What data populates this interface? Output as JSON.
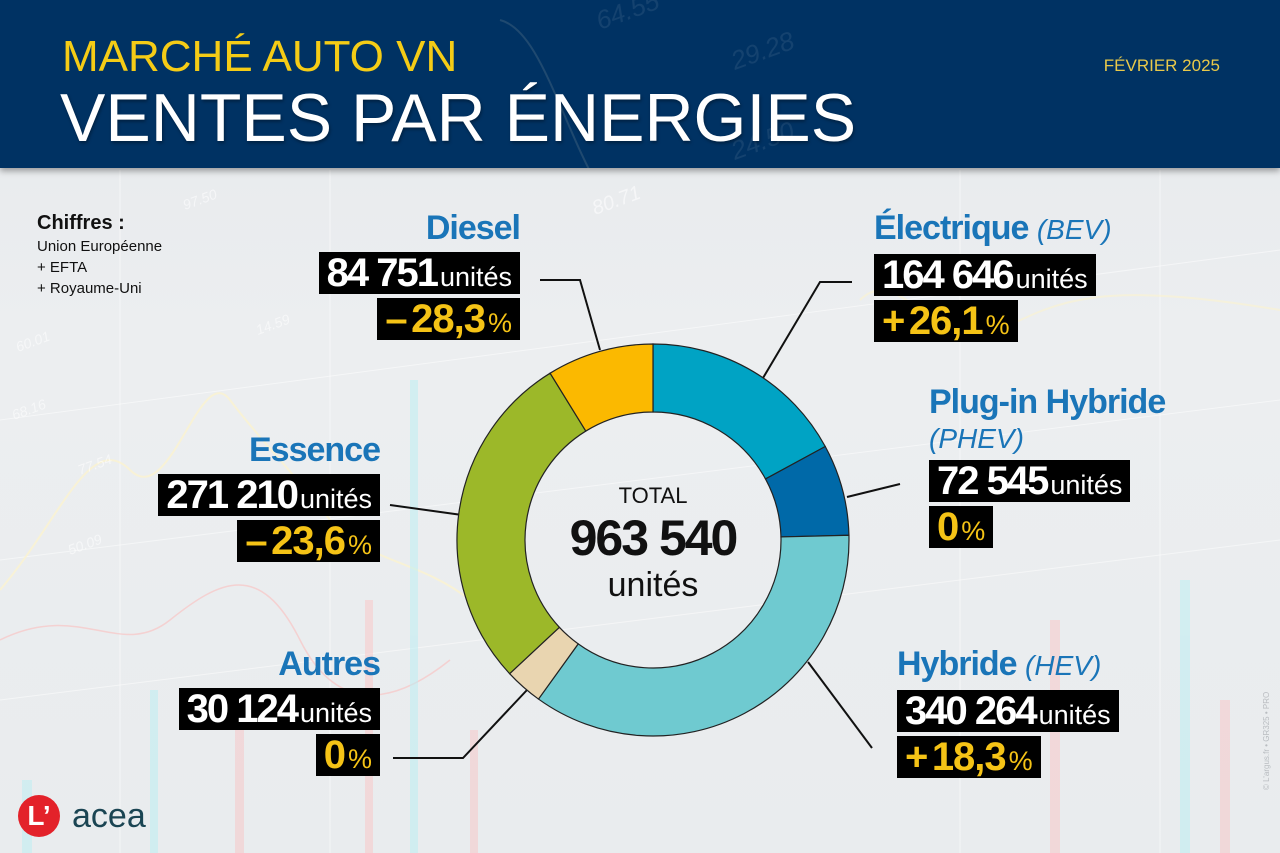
{
  "header": {
    "title_top": "MARCHÉ AUTO VN",
    "title_main": "VENTES PAR ÉNERGIES",
    "date": "FÉVRIER 2025",
    "background_color": "#003263",
    "accent_color": "#f5cc16"
  },
  "source": {
    "title": "Chiffres :",
    "lines": [
      "Union Européenne",
      "+ EFTA",
      "+ Royaume-Uni"
    ]
  },
  "categories": {
    "diesel": {
      "name": "Diesel",
      "sub": "",
      "units": "84 751",
      "unit_label": "unités",
      "change_sign": "–",
      "change": "28,3",
      "pct_label": "%",
      "color": "#fbb900"
    },
    "electrique": {
      "name": "Électrique",
      "sub": "(BEV)",
      "units": "164 646",
      "unit_label": "unités",
      "change_sign": "+",
      "change": "26,1",
      "pct_label": "%",
      "color": "#00a3c4"
    },
    "phev": {
      "name": "Plug-in Hybride",
      "sub": "(PHEV)",
      "units": "72 545",
      "unit_label": "unités",
      "change_sign": "",
      "change": "0",
      "pct_label": "%",
      "color": "#0069a8"
    },
    "essence": {
      "name": "Essence",
      "sub": "",
      "units": "271 210",
      "unit_label": "unités",
      "change_sign": "–",
      "change": "23,6",
      "pct_label": "%",
      "color": "#9cb829"
    },
    "autres": {
      "name": "Autres",
      "sub": "",
      "units": "30 124",
      "unit_label": "unités",
      "change_sign": "",
      "change": "0",
      "pct_label": "%",
      "color": "#e9d5b0"
    },
    "hev": {
      "name": "Hybride",
      "sub": "(HEV)",
      "units": "340 264",
      "unit_label": "unités",
      "change_sign": "+",
      "change": "18,3",
      "pct_label": "%",
      "color": "#6fcad0"
    }
  },
  "center": {
    "label": "TOTAL",
    "value": "963 540",
    "unit": "unités"
  },
  "footer": {
    "logo_letter": "L’",
    "partner": "acea",
    "credit": "© L’argus.fr • GR325 • PRO"
  },
  "chart_data": {
    "type": "pie",
    "subtype": "donut",
    "title": "MARCHÉ AUTO VN — VENTES PAR ÉNERGIES",
    "subtitle": "FÉVRIER 2025",
    "scope": "Union Européenne + EFTA + Royaume-Uni",
    "center_label": "TOTAL 963 540 unités",
    "total": 963540,
    "categories": [
      "Électrique (BEV)",
      "Plug-in Hybride (PHEV)",
      "Hybride (HEV)",
      "Autres",
      "Essence",
      "Diesel"
    ],
    "values": [
      164646,
      72545,
      340264,
      30124,
      271210,
      84751
    ],
    "change_pct": [
      26.1,
      0,
      18.3,
      0,
      -23.6,
      -28.3
    ],
    "colors": [
      "#00a3c4",
      "#0069a8",
      "#6fcad0",
      "#e9d5b0",
      "#9cb829",
      "#fbb900"
    ],
    "start_angle": "top (12 o'clock), clockwise",
    "legend": "none — labels placed around the donut with leader lines"
  }
}
